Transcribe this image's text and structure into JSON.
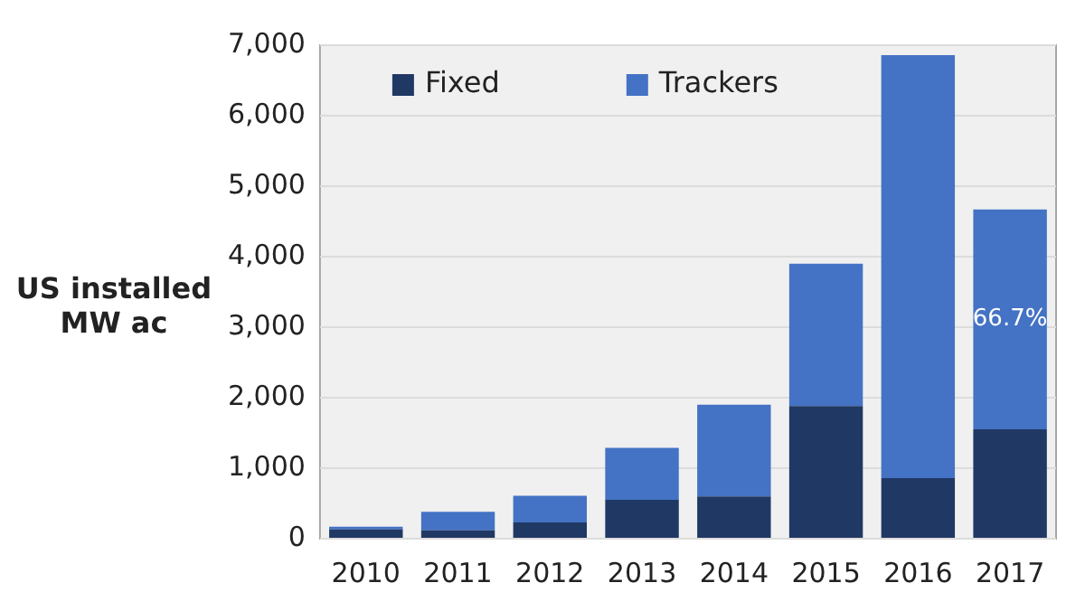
{
  "chart_data": {
    "type": "bar",
    "stacked": true,
    "ylabel": "US installed MW ac",
    "categories": [
      "2010",
      "2011",
      "2012",
      "2013",
      "2014",
      "2015",
      "2016",
      "2017"
    ],
    "series": [
      {
        "name": "Fixed",
        "color": "#203864",
        "values": [
          130,
          120,
          230,
          550,
          600,
          1880,
          860,
          1550
        ]
      },
      {
        "name": "Trackers",
        "color": "#4472c4",
        "values": [
          40,
          260,
          380,
          740,
          1300,
          2020,
          6000,
          3120
        ]
      }
    ],
    "ylim": [
      0,
      7000
    ],
    "yticks": [
      {
        "value": 0,
        "label": "0"
      },
      {
        "value": 1000,
        "label": "1,000"
      },
      {
        "value": 2000,
        "label": "2,000"
      },
      {
        "value": 3000,
        "label": "3,000"
      },
      {
        "value": 4000,
        "label": "4,000"
      },
      {
        "value": 5000,
        "label": "5,000"
      },
      {
        "value": 6000,
        "label": "6,000"
      },
      {
        "value": 7000,
        "label": "7,000"
      }
    ],
    "grid": "y",
    "legend": "top left",
    "annotations": [
      "66.7%"
    ]
  }
}
